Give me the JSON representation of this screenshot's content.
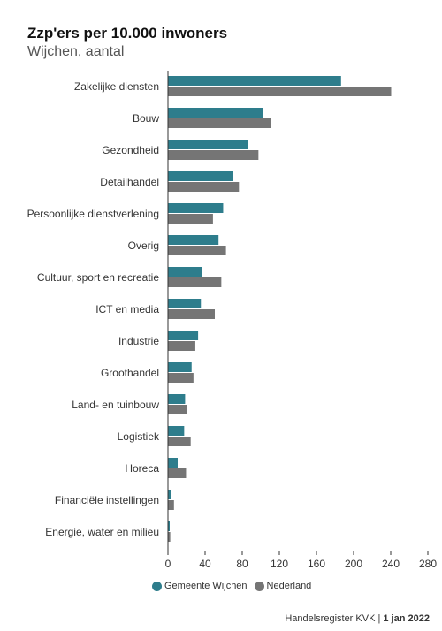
{
  "title": "Zzp'ers per 10.000 inwoners",
  "subtitle": "Wijchen, aantal",
  "source": {
    "text": "Handelsregister KVK",
    "separator": "|",
    "date": "1 jan 2022"
  },
  "legend": [
    {
      "name": "Gemeente Wijchen",
      "color": "#2e7d8c"
    },
    {
      "name": "Nederland",
      "color": "#757575"
    }
  ],
  "chart_data": {
    "type": "bar",
    "orientation": "horizontal",
    "title": "Zzp'ers per 10.000 inwoners",
    "subtitle": "Wijchen, aantal",
    "categories": [
      "Zakelijke diensten",
      "Bouw",
      "Gezondheid",
      "Detailhandel",
      "Persoonlijke dienstverlening",
      "Overig",
      "Cultuur, sport en recreatie",
      "ICT en media",
      "Industrie",
      "Groothandel",
      "Land- en tuinbouw",
      "Logistiek",
      "Horeca",
      "Financiële instellingen",
      "Energie, water en milieu"
    ],
    "series": [
      {
        "name": "Gemeente Wijchen",
        "color": "#2e7d8c",
        "values": [
          186,
          102,
          86,
          70,
          59,
          54,
          36,
          35,
          32,
          25,
          18,
          17,
          10,
          3,
          1
        ]
      },
      {
        "name": "Nederland",
        "color": "#757575",
        "values": [
          240,
          110,
          97,
          76,
          48,
          62,
          57,
          50,
          29,
          27,
          20,
          24,
          19,
          6,
          2
        ]
      }
    ],
    "x_ticks": [
      0,
      40,
      80,
      120,
      160,
      200,
      240,
      280
    ],
    "xlim": [
      0,
      290
    ],
    "grid": false,
    "legend_position": "bottom-center"
  }
}
